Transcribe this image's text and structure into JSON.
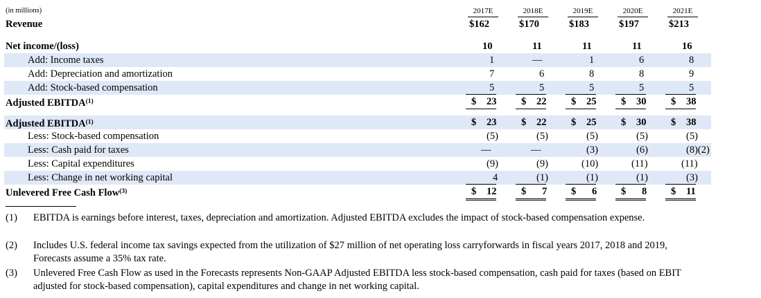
{
  "units": "(in millions)",
  "years": [
    "2017E",
    "2018E",
    "2019E",
    "2020E",
    "2021E"
  ],
  "revenue": {
    "label": "Revenue",
    "values": [
      "$162",
      "$170",
      "$183",
      "$197",
      "$213"
    ]
  },
  "net_income": {
    "label": "Net income/(loss)",
    "values": [
      "10",
      "11",
      "11",
      "11",
      "16"
    ]
  },
  "income_taxes": {
    "label": "Add: Income taxes",
    "values": [
      "1",
      "—",
      "1",
      "6",
      "8"
    ]
  },
  "dep_amort": {
    "label": "Add: Depreciation and amortization",
    "values": [
      "7",
      "6",
      "8",
      "8",
      "9"
    ]
  },
  "sbc_add": {
    "label": "Add: Stock-based compensation",
    "values": [
      "5",
      "5",
      "5",
      "5",
      "5"
    ]
  },
  "adj_ebitda_1": {
    "label": "Adjusted EBITDA",
    "note": "(1)",
    "values": [
      "23",
      "22",
      "25",
      "30",
      "38"
    ]
  },
  "adj_ebitda_2": {
    "label": "Adjusted EBITDA",
    "note": "(1)",
    "values": [
      "23",
      "22",
      "25",
      "30",
      "38"
    ]
  },
  "sbc_less": {
    "label": "Less: Stock-based compensation",
    "values": [
      "(5)",
      "(5)",
      "(5)",
      "(5)",
      "(5)"
    ]
  },
  "cash_taxes": {
    "label": "Less: Cash paid for taxes",
    "values": [
      "—",
      "—",
      "(3)",
      "(6)",
      "(8)"
    ],
    "last_note": "(2)"
  },
  "capex": {
    "label": "Less: Capital expenditures",
    "values": [
      "(9)",
      "(9)",
      "(10)",
      "(11)",
      "(11)"
    ]
  },
  "nwc": {
    "label": "Less: Change in net working capital",
    "values": [
      "4",
      "(1)",
      "(1)",
      "(1)",
      "(3)"
    ]
  },
  "ufcf": {
    "label": "Unlevered Free Cash Flow",
    "note": "(3)",
    "values": [
      "12",
      "7",
      "6",
      "8",
      "11"
    ]
  },
  "dollar": "$",
  "footnotes": [
    {
      "num": "(1)",
      "text": "EBITDA is earnings before interest, taxes, depreciation and amortization. Adjusted EBITDA excludes the impact of stock-based compensation expense."
    },
    {
      "num": "(2)",
      "text": "Includes U.S. federal income tax savings expected from the utilization of $27 million of net operating loss carryforwards in fiscal years 2017, 2018 and 2019, Forecasts assume a 35% tax rate."
    },
    {
      "num": "(3)",
      "text": "Unlevered Free Cash Flow as used in the Forecasts represents Non-GAAP Adjusted EBITDA less stock-based compensation, cash paid for taxes (based on EBIT adjusted for stock-based compensation), capital expenditures and change in net working capital."
    }
  ]
}
